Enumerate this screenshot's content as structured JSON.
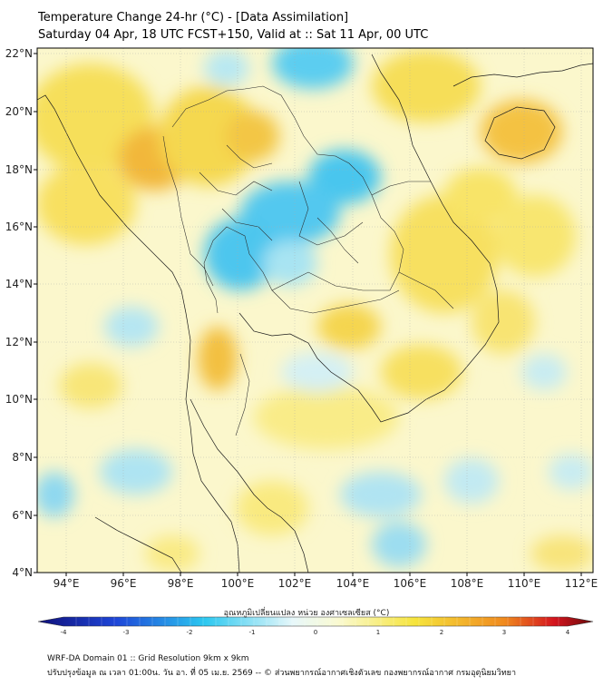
{
  "header": {
    "title_line1": "Temperature Change 24-hr (°C) - [Data Assimilation]",
    "title_line2": "Saturday 04 Apr, 18 UTC FCST+150, Valid at :: Sat 11 Apr, 00 UTC"
  },
  "map": {
    "lat_labels": [
      "22°N",
      "20°N",
      "18°N",
      "16°N",
      "14°N",
      "12°N",
      "10°N",
      "8°N",
      "6°N",
      "4°N"
    ],
    "lon_labels": [
      "94°E",
      "96°E",
      "98°E",
      "100°E",
      "102°E",
      "104°E",
      "106°E",
      "108°E",
      "110°E",
      "112°E"
    ],
    "lat_range": [
      4,
      22
    ],
    "lon_range": [
      93,
      112.4
    ],
    "grid": true
  },
  "colorbar": {
    "label": "อุณหภูมิเปลี่ยนแปลง หน่วย องศาเซลเซียส (°C)",
    "ticks": [
      "-4",
      "-3",
      "-2",
      "-1",
      "0",
      "1",
      "2",
      "3",
      "4"
    ],
    "min": -4,
    "max": 4,
    "colors": {
      "dark_blue": "#10107a",
      "blue": "#1e46d8",
      "cyan": "#2cc8f0",
      "light": "#f4f8f4",
      "yellow": "#f6e43c",
      "orange": "#f08a1e",
      "red": "#d4141e",
      "dark_red": "#6a0a0a"
    }
  },
  "footer": {
    "line1": "WRF-DA Domain 01 :: Grid Resolution 9km x 9km",
    "line2": "ปรับปรุงข้อมูล ณ เวลา 01:00น. วัน อา. ที่ 05 เม.ย. 2569 -- © ส่วนพยากรณ์อากาศเชิงตัวเลข กองพยากรณ์อากาศ กรมอุตุนิยมวิทยา"
  }
}
